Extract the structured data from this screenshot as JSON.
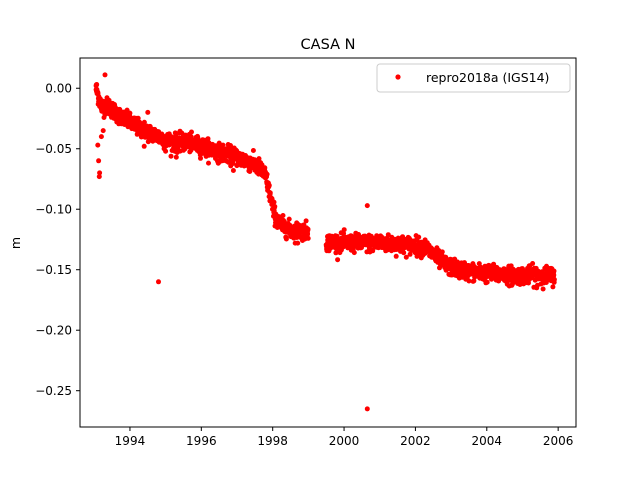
{
  "chart_data": {
    "type": "scatter",
    "title": "CASA N",
    "xlabel": "",
    "ylabel": "m",
    "xlim": [
      1992.6,
      2006.5
    ],
    "ylim": [
      -0.28,
      0.025
    ],
    "xticks": [
      1994,
      1996,
      1998,
      2000,
      2002,
      2004,
      2006
    ],
    "xtick_labels": [
      "1994",
      "1996",
      "1998",
      "2000",
      "2002",
      "2004",
      "2006"
    ],
    "yticks": [
      0.0,
      -0.05,
      -0.1,
      -0.15,
      -0.2,
      -0.25
    ],
    "ytick_labels": [
      "0.00",
      "−0.05",
      "−0.10",
      "−0.15",
      "−0.20",
      "−0.25"
    ],
    "grid": false,
    "legend_position": "top-right",
    "series": [
      {
        "name": "repro2018a (IGS14)",
        "color": "#ff0000",
        "marker": "circle",
        "trend": [
          [
            1993.05,
            0.0
          ],
          [
            1993.1,
            -0.005
          ],
          [
            1993.2,
            -0.015
          ],
          [
            1993.4,
            -0.015
          ],
          [
            1993.6,
            -0.02
          ],
          [
            1993.8,
            -0.025
          ],
          [
            1994.0,
            -0.028
          ],
          [
            1994.2,
            -0.032
          ],
          [
            1994.5,
            -0.036
          ],
          [
            1994.8,
            -0.04
          ],
          [
            1995.0,
            -0.043
          ],
          [
            1995.3,
            -0.045
          ],
          [
            1995.6,
            -0.045
          ],
          [
            1995.9,
            -0.047
          ],
          [
            1996.2,
            -0.05
          ],
          [
            1996.5,
            -0.053
          ],
          [
            1996.8,
            -0.055
          ],
          [
            1997.1,
            -0.058
          ],
          [
            1997.4,
            -0.062
          ],
          [
            1997.6,
            -0.065
          ],
          [
            1997.8,
            -0.072
          ],
          [
            1997.9,
            -0.085
          ],
          [
            1998.0,
            -0.098
          ],
          [
            1998.1,
            -0.108
          ],
          [
            1998.2,
            -0.112
          ],
          [
            1998.4,
            -0.116
          ],
          [
            1998.6,
            -0.118
          ],
          [
            1998.8,
            -0.118
          ],
          [
            1999.0,
            -0.118
          ],
          [
            1999.5,
            -0.127
          ],
          [
            2000.0,
            -0.128
          ],
          [
            2000.5,
            -0.128
          ],
          [
            2001.0,
            -0.128
          ],
          [
            2001.5,
            -0.129
          ],
          [
            2002.0,
            -0.13
          ],
          [
            2002.3,
            -0.132
          ],
          [
            2002.6,
            -0.14
          ],
          [
            2002.9,
            -0.147
          ],
          [
            2003.2,
            -0.15
          ],
          [
            2003.6,
            -0.152
          ],
          [
            2004.0,
            -0.153
          ],
          [
            2004.5,
            -0.154
          ],
          [
            2005.0,
            -0.155
          ],
          [
            2005.3,
            -0.154
          ],
          [
            2005.6,
            -0.155
          ],
          [
            2005.9,
            -0.155
          ]
        ],
        "noise": 0.0035,
        "outliers": [
          [
            1993.1,
            -0.047
          ],
          [
            1993.12,
            -0.06
          ],
          [
            1993.14,
            -0.073
          ],
          [
            1993.15,
            -0.07
          ],
          [
            1993.2,
            -0.04
          ],
          [
            1993.25,
            -0.035
          ],
          [
            1993.3,
            0.011
          ],
          [
            1993.05,
            0.002
          ],
          [
            1994.4,
            -0.048
          ],
          [
            1994.5,
            -0.02
          ],
          [
            1994.8,
            -0.16
          ],
          [
            1995.0,
            -0.052
          ],
          [
            1995.3,
            -0.057
          ],
          [
            1996.9,
            -0.068
          ],
          [
            1998.7,
            -0.128
          ],
          [
            2000.65,
            -0.097
          ],
          [
            2000.65,
            -0.265
          ],
          [
            2004.7,
            -0.163
          ],
          [
            2005.4,
            -0.165
          ]
        ]
      }
    ]
  }
}
